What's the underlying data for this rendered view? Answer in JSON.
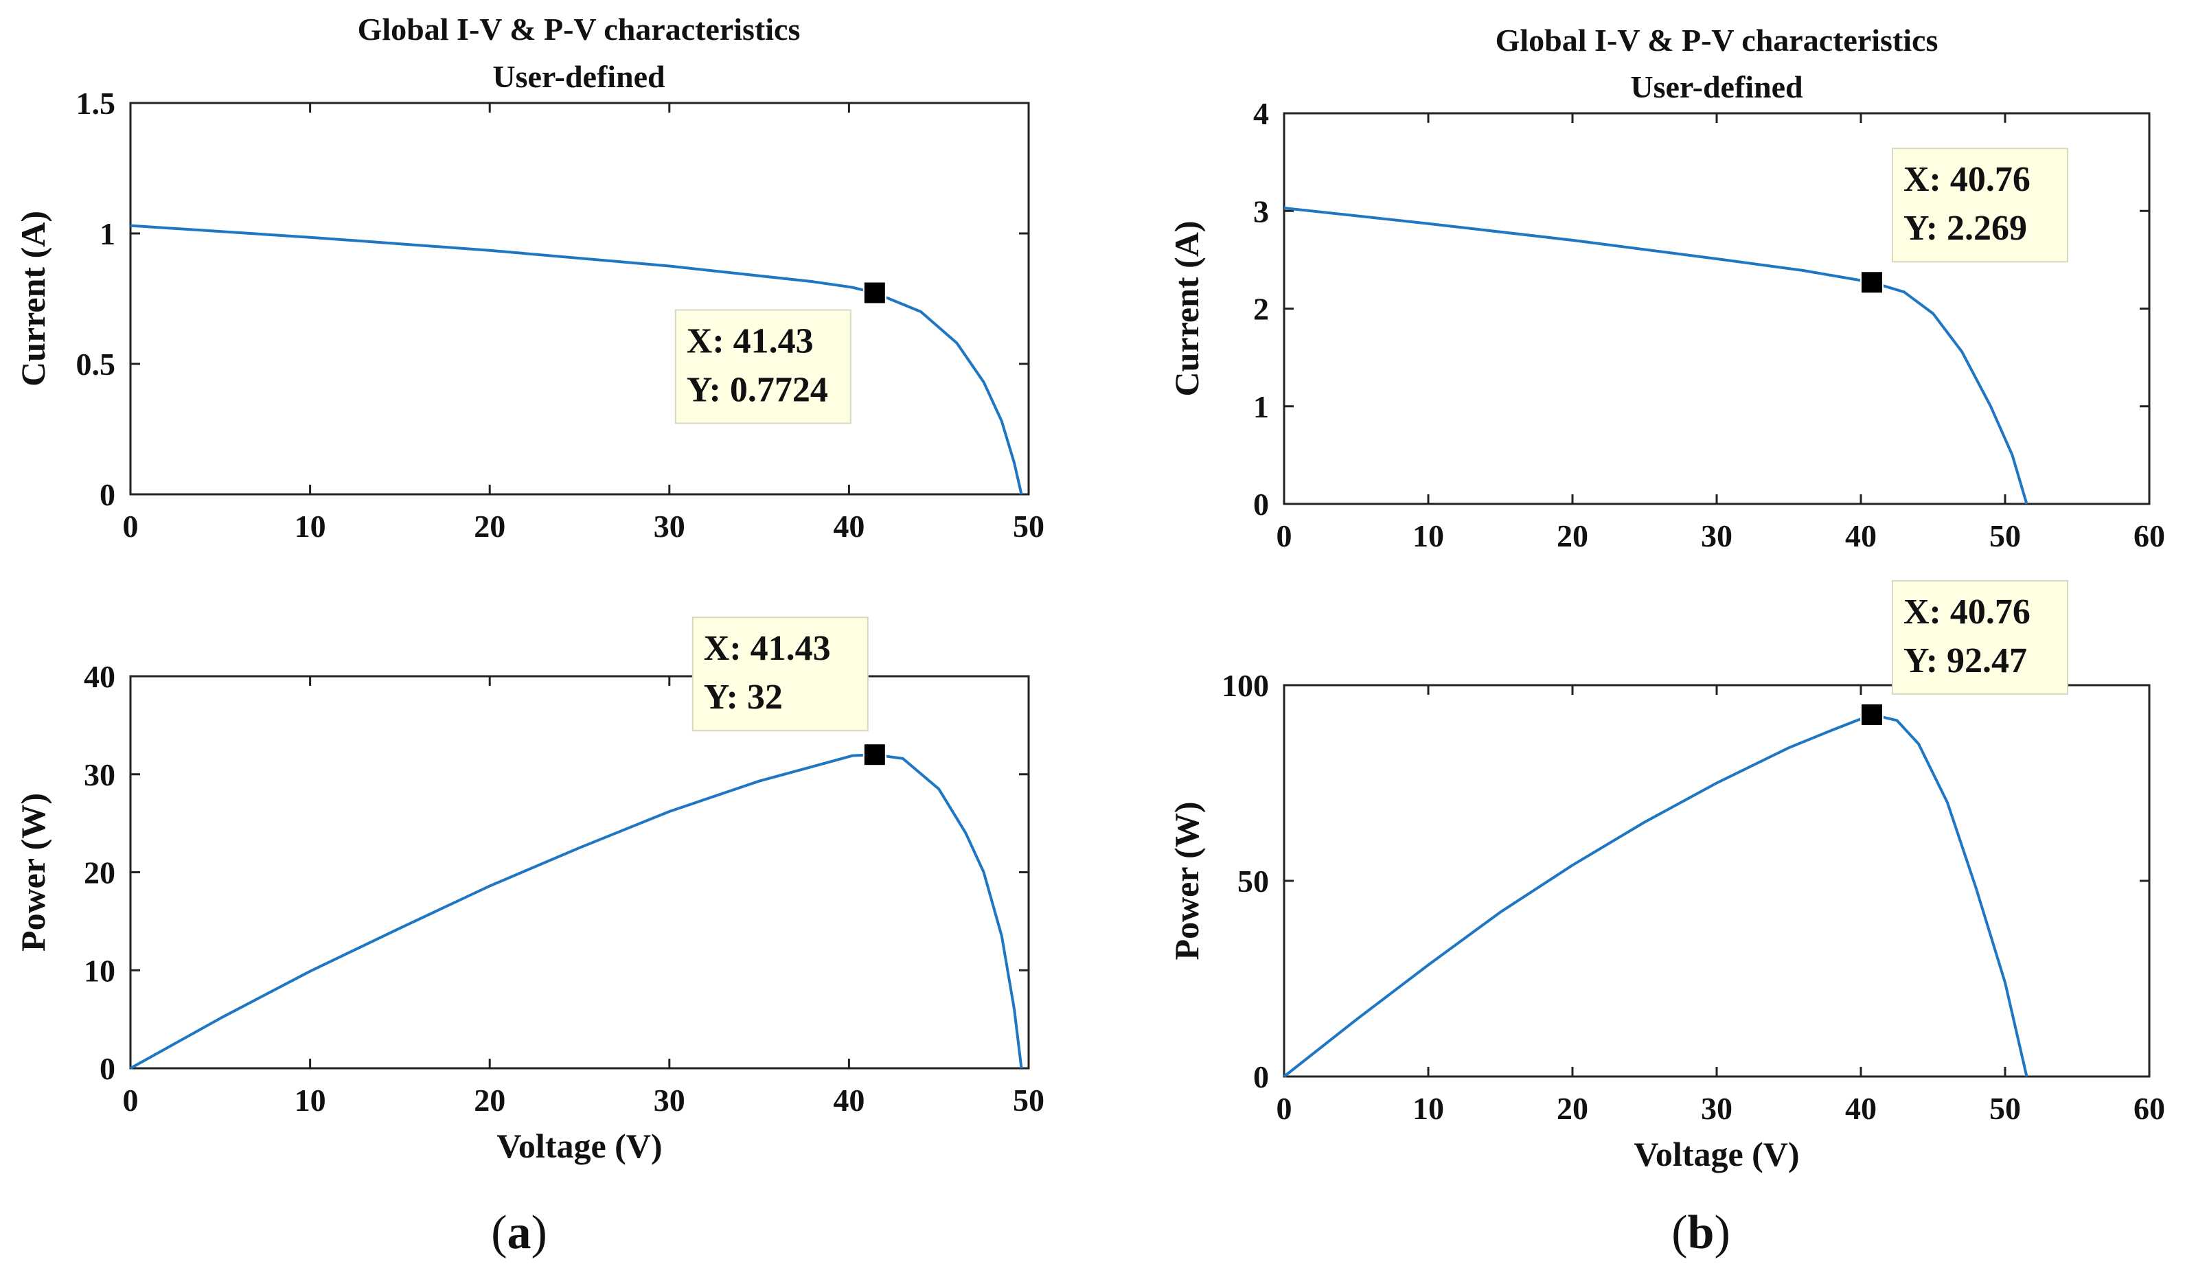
{
  "panels": [
    {
      "caption_letter": "a",
      "title_line1": "Global I-V & P-V characteristics",
      "title_line2": "User-defined",
      "iv": {
        "ylabel": "Current (A)",
        "xlabel": "",
        "xlim": [
          0,
          50
        ],
        "ylim": [
          0,
          1.5
        ],
        "xticks": [
          0,
          10,
          20,
          30,
          40,
          50
        ],
        "yticks": [
          0,
          0.5,
          1,
          1.5
        ],
        "datatip": {
          "x": 41.43,
          "y": 0.7724,
          "line1": "X: 41.43",
          "line2": "Y: 0.7724",
          "placement": "below-left"
        }
      },
      "pv": {
        "ylabel": "Power (W)",
        "xlabel": "Voltage (V)",
        "xlim": [
          0,
          50
        ],
        "ylim": [
          0,
          40
        ],
        "xticks": [
          0,
          10,
          20,
          30,
          40,
          50
        ],
        "yticks": [
          0,
          10,
          20,
          30,
          40
        ],
        "datatip": {
          "x": 41.43,
          "y": 32,
          "line1": "X: 41.43",
          "line2": "Y: 32",
          "placement": "above-left"
        }
      }
    },
    {
      "caption_letter": "b",
      "title_line1": "Global I-V & P-V characteristics",
      "title_line2": "User-defined",
      "iv": {
        "ylabel": "Current (A)",
        "xlabel": "",
        "xlim": [
          0,
          60
        ],
        "ylim": [
          0,
          4
        ],
        "xticks": [
          0,
          10,
          20,
          30,
          40,
          50,
          60
        ],
        "yticks": [
          0,
          1,
          2,
          3,
          4
        ],
        "datatip": {
          "x": 40.76,
          "y": 2.269,
          "line1": "X: 40.76",
          "line2": "Y: 2.269",
          "placement": "above-right"
        }
      },
      "pv": {
        "ylabel": "Power (W)",
        "xlabel": "Voltage (V)",
        "xlim": [
          0,
          60
        ],
        "ylim": [
          0,
          100
        ],
        "xticks": [
          0,
          10,
          20,
          30,
          40,
          50,
          60
        ],
        "yticks": [
          0,
          50,
          100
        ],
        "datatip": {
          "x": 40.76,
          "y": 92.47,
          "line1": "X: 40.76",
          "line2": "Y: 92.47",
          "placement": "above-right"
        }
      }
    }
  ],
  "chart_data": [
    {
      "type": "line",
      "title": "Global I-V & P-V characteristics User-defined",
      "subplot": "(a) I-V",
      "xlabel": "",
      "ylabel": "Current (A)",
      "xlim": [
        0,
        50
      ],
      "ylim": [
        0,
        1.5
      ],
      "series": [
        {
          "name": "I-V",
          "x": [
            0,
            10,
            20,
            30,
            38,
            40,
            40.2,
            41.43,
            44,
            46,
            47.5,
            48.5,
            49.2,
            49.6
          ],
          "y": [
            1.03,
            0.985,
            0.935,
            0.875,
            0.815,
            0.795,
            0.793,
            0.7724,
            0.7,
            0.58,
            0.43,
            0.28,
            0.12,
            0
          ]
        }
      ],
      "color": "#1f77c4"
    },
    {
      "type": "line",
      "subplot": "(a) P-V",
      "xlabel": "Voltage (V)",
      "ylabel": "Power (W)",
      "xlim": [
        0,
        50
      ],
      "ylim": [
        0,
        40
      ],
      "series": [
        {
          "name": "P-V",
          "x": [
            0,
            5,
            10,
            15,
            20,
            25,
            30,
            35,
            40,
            40.2,
            41.43,
            43,
            45,
            46.5,
            47.5,
            48.5,
            49.2,
            49.6
          ],
          "y": [
            0,
            5.1,
            9.9,
            14.3,
            18.6,
            22.5,
            26.2,
            29.3,
            31.8,
            31.9,
            32,
            31.6,
            28.5,
            24,
            20,
            13.5,
            6,
            0
          ]
        }
      ],
      "color": "#1f77c4"
    },
    {
      "type": "line",
      "subplot": "(b) I-V",
      "xlabel": "",
      "ylabel": "Current (A)",
      "xlim": [
        0,
        60
      ],
      "ylim": [
        0,
        4
      ],
      "series": [
        {
          "name": "I-V",
          "x": [
            0,
            10,
            20,
            30,
            36,
            40.76,
            43,
            45,
            47,
            49,
            50.5,
            51.5
          ],
          "y": [
            3.03,
            2.87,
            2.7,
            2.51,
            2.39,
            2.269,
            2.17,
            1.95,
            1.56,
            1.0,
            0.5,
            0
          ]
        }
      ],
      "color": "#1f77c4"
    },
    {
      "type": "line",
      "subplot": "(b) P-V",
      "xlabel": "Voltage (V)",
      "ylabel": "Power (W)",
      "xlim": [
        0,
        60
      ],
      "ylim": [
        0,
        100
      ],
      "series": [
        {
          "name": "P-V",
          "x": [
            0,
            5,
            10,
            15,
            20,
            25,
            30,
            35,
            38,
            40.76,
            42.5,
            44,
            46,
            48,
            50,
            51.5
          ],
          "y": [
            0,
            14.5,
            28.5,
            42,
            54,
            65,
            75,
            84,
            88.5,
            92.47,
            91,
            85,
            70,
            48,
            24,
            0
          ]
        }
      ],
      "color": "#1f77c4"
    }
  ],
  "style": {
    "line_color": "#1f77c4",
    "datatip_bg": "#ffffe4",
    "axis_color": "#222222"
  }
}
